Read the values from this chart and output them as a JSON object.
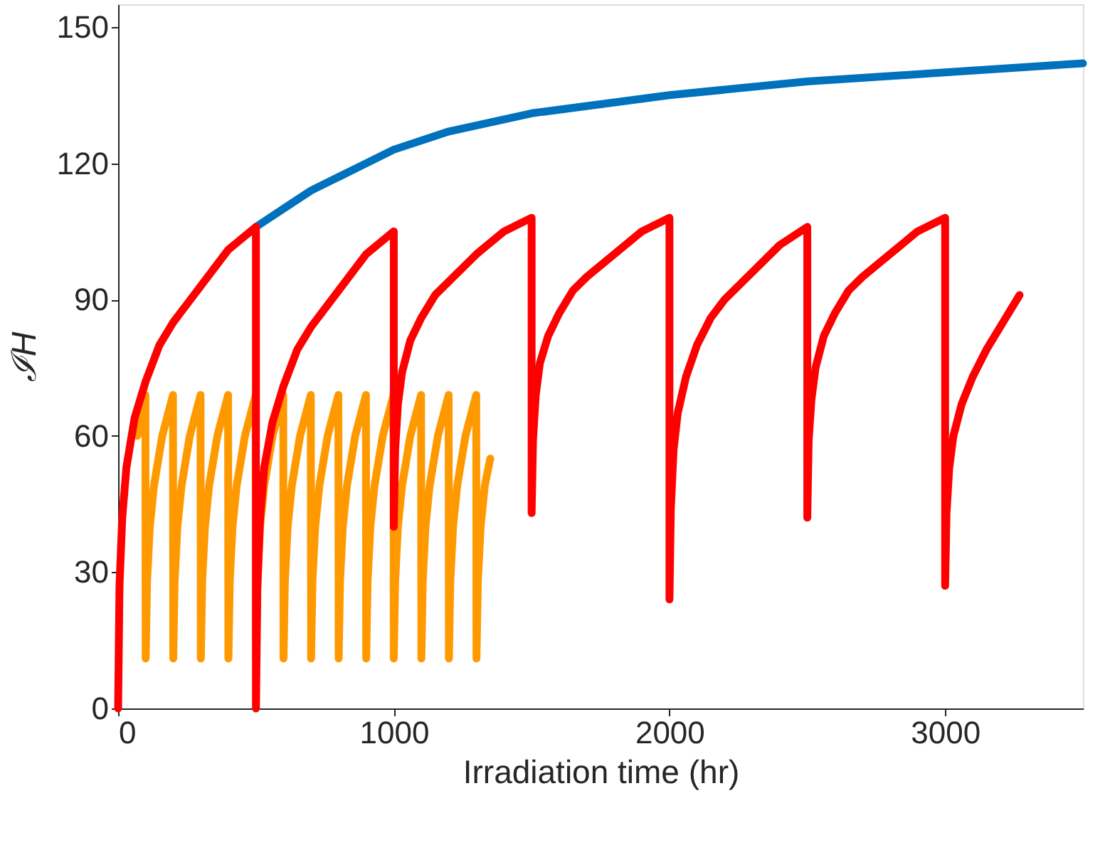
{
  "chart_data": {
    "type": "line",
    "xlabel": "Irradiation time (hr)",
    "ylabel": "ℐH",
    "xlim": [
      0,
      3500
    ],
    "ylim": [
      0,
      155
    ],
    "xticks": [
      0,
      1000,
      2000,
      3000
    ],
    "yticks": [
      0,
      30,
      60,
      90,
      120,
      150
    ],
    "grid": false,
    "legend": false,
    "marker": "none",
    "line_style": "solid",
    "series": [
      {
        "color": "#0072bd",
        "x": [
          500,
          600,
          700,
          800,
          1000,
          1200,
          1500,
          2000,
          2500,
          3000,
          3500
        ],
        "values": [
          106,
          110,
          114,
          117,
          123,
          127,
          131,
          135,
          138,
          140,
          142
        ]
      },
      {
        "color": "#ff9900",
        "x": [
          70,
          99,
          100,
          105,
          115,
          130,
          160,
          199,
          200,
          205,
          215,
          230,
          260,
          299,
          300,
          305,
          315,
          330,
          360,
          399,
          400,
          405,
          415,
          430,
          460,
          499,
          500,
          505,
          515,
          530,
          560,
          599,
          600,
          605,
          615,
          630,
          660,
          699,
          700,
          705,
          715,
          730,
          760,
          799,
          800,
          805,
          815,
          830,
          860,
          899,
          900,
          905,
          915,
          930,
          960,
          999,
          1000,
          1005,
          1015,
          1030,
          1060,
          1099,
          1100,
          1105,
          1115,
          1130,
          1160,
          1199,
          1200,
          1205,
          1215,
          1230,
          1260,
          1299,
          1300,
          1305,
          1315,
          1330,
          1350
        ],
        "values": [
          60,
          69,
          11,
          28,
          40,
          49,
          60,
          69,
          11,
          28,
          40,
          49,
          60,
          69,
          11,
          28,
          40,
          49,
          60,
          69,
          11,
          28,
          40,
          49,
          60,
          69,
          11,
          28,
          40,
          49,
          60,
          69,
          11,
          28,
          40,
          49,
          60,
          69,
          11,
          28,
          40,
          49,
          60,
          69,
          11,
          28,
          40,
          49,
          60,
          69,
          11,
          28,
          40,
          49,
          60,
          69,
          11,
          28,
          40,
          49,
          60,
          69,
          11,
          28,
          40,
          49,
          60,
          69,
          11,
          28,
          40,
          49,
          60,
          69,
          11,
          28,
          40,
          49,
          55
        ]
      },
      {
        "color": "#ff0000",
        "x": [
          0,
          5,
          15,
          30,
          60,
          100,
          150,
          200,
          300,
          400,
          500,
          500,
          505,
          515,
          530,
          560,
          600,
          650,
          700,
          800,
          900,
          1000,
          1000,
          1005,
          1015,
          1030,
          1060,
          1100,
          1150,
          1200,
          1300,
          1400,
          1500,
          1500,
          1505,
          1515,
          1530,
          1560,
          1600,
          1650,
          1700,
          1800,
          1900,
          2000,
          2000,
          2005,
          2015,
          2030,
          2060,
          2100,
          2150,
          2200,
          2300,
          2400,
          2500,
          2500,
          2505,
          2515,
          2530,
          2560,
          2600,
          2650,
          2700,
          2800,
          2900,
          3000,
          3000,
          3005,
          3015,
          3030,
          3060,
          3100,
          3150,
          3200,
          3270
        ],
        "values": [
          0,
          27,
          42,
          53,
          64,
          72,
          80,
          85,
          93,
          101,
          106,
          0,
          26,
          42,
          53,
          63,
          71,
          79,
          84,
          92,
          100,
          105,
          40,
          57,
          67,
          74,
          81,
          86,
          91,
          94,
          100,
          105,
          108,
          43,
          59,
          69,
          76,
          82,
          87,
          92,
          95,
          100,
          105,
          108,
          24,
          44,
          57,
          65,
          73,
          80,
          86,
          90,
          96,
          102,
          106,
          42,
          59,
          68,
          75,
          82,
          87,
          92,
          95,
          100,
          105,
          108,
          27,
          43,
          53,
          60,
          67,
          73,
          79,
          84,
          91
        ]
      }
    ]
  }
}
